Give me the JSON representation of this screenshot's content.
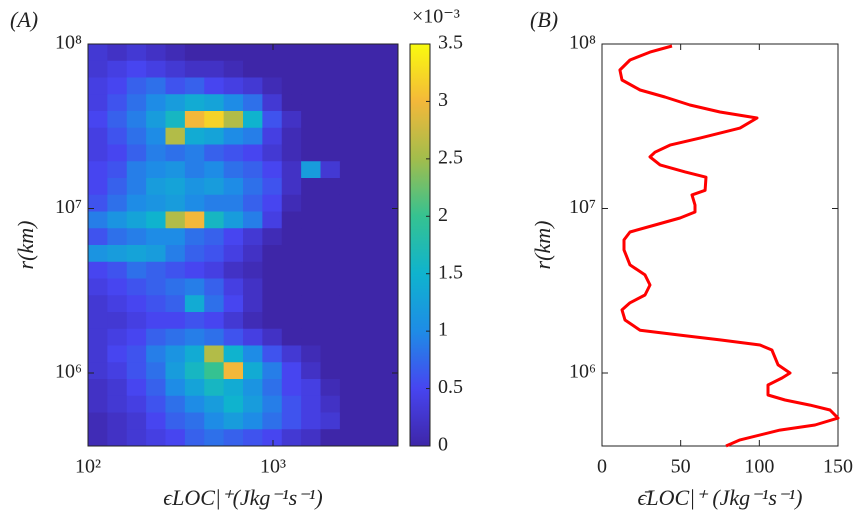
{
  "chart_data": [
    {
      "type": "heatmap",
      "panel_label": "(A)",
      "xlabel": "ϵLOC|⁺(Jkg⁻¹s⁻¹)",
      "ylabel": "r(km)",
      "xscale": "log",
      "yscale": "log",
      "xlim": [
        100,
        4740
      ],
      "ylim": [
        360000,
        100000000
      ],
      "xticks": [
        {
          "value": 100,
          "label": "10²"
        },
        {
          "value": 1000,
          "label": "10³"
        }
      ],
      "yticks": [
        {
          "value": 1000000,
          "label": "10⁶"
        },
        {
          "value": 10000000,
          "label": "10⁷"
        },
        {
          "value": 100000000,
          "label": "10⁸"
        }
      ],
      "clim": [
        0,
        3.5
      ],
      "colorbar_ticks": [
        0,
        0.5,
        1,
        1.5,
        2,
        2.5,
        3,
        3.5
      ],
      "colorbar_label": "×10⁻³",
      "colormap": [
        "#3e26a8",
        "#4745f0",
        "#1e8ce6",
        "#0fb3ce",
        "#35c291",
        "#a2bd4c",
        "#f3b83a",
        "#f9fb0e"
      ],
      "z": [
        [
          0.3,
          0.2,
          0.3,
          0.2,
          0.1,
          0,
          0,
          0,
          0,
          0,
          0,
          0,
          0,
          0,
          0,
          0
        ],
        [
          0.3,
          0.4,
          0.5,
          0.4,
          0.3,
          0.2,
          0.2,
          0.1,
          0,
          0,
          0,
          0,
          0,
          0,
          0,
          0
        ],
        [
          0.4,
          0.5,
          0.7,
          0.8,
          0.6,
          0.7,
          0.5,
          0.4,
          0.3,
          0.1,
          0,
          0,
          0,
          0,
          0,
          0
        ],
        [
          0.4,
          0.6,
          0.8,
          1.0,
          1.2,
          1.4,
          1.3,
          1.0,
          0.8,
          0.3,
          0,
          0,
          0,
          0,
          0,
          0
        ],
        [
          0.5,
          0.7,
          0.9,
          1.2,
          1.6,
          3.0,
          3.2,
          2.6,
          1.5,
          0.6,
          0.2,
          0,
          0,
          0,
          0,
          0
        ],
        [
          0.4,
          0.6,
          0.8,
          1.0,
          2.6,
          1.4,
          1.3,
          1.0,
          0.9,
          0.4,
          0.1,
          0,
          0,
          0,
          0,
          0
        ],
        [
          0.4,
          0.5,
          0.7,
          0.9,
          0.8,
          0.9,
          0.7,
          0.6,
          0.5,
          0.3,
          0.1,
          0,
          0,
          0,
          0,
          0
        ],
        [
          0.5,
          0.6,
          0.9,
          1.0,
          1.1,
          0.9,
          1.0,
          0.8,
          0.7,
          0.5,
          0.2,
          1.2,
          0.3,
          0,
          0,
          0
        ],
        [
          0.5,
          0.7,
          0.9,
          1.2,
          1.3,
          1.1,
          1.2,
          1.0,
          0.8,
          0.6,
          0.2,
          0,
          0,
          0,
          0,
          0
        ],
        [
          0.6,
          0.8,
          1.0,
          1.1,
          1.2,
          1.0,
          0.9,
          0.9,
          0.7,
          0.5,
          0.1,
          0,
          0,
          0,
          0,
          0
        ],
        [
          0.9,
          1.1,
          1.3,
          1.5,
          2.6,
          3.0,
          1.6,
          1.2,
          0.9,
          0.4,
          0,
          0,
          0,
          0,
          0,
          0
        ],
        [
          0.6,
          0.8,
          0.9,
          1.0,
          1.0,
          0.8,
          0.7,
          0.5,
          0.3,
          0.1,
          0,
          0,
          0,
          0,
          0,
          0
        ],
        [
          1.1,
          1.2,
          1.3,
          1.2,
          0.9,
          0.7,
          0.6,
          0.4,
          0.2,
          0,
          0,
          0,
          0,
          0,
          0,
          0
        ],
        [
          0.5,
          0.6,
          0.8,
          0.7,
          0.6,
          0.5,
          0.4,
          0.2,
          0.1,
          0,
          0,
          0,
          0,
          0,
          0,
          0
        ],
        [
          0.4,
          0.5,
          0.6,
          0.7,
          0.8,
          0.9,
          0.7,
          0.4,
          0.2,
          0,
          0,
          0,
          0,
          0,
          0,
          0
        ],
        [
          0.3,
          0.4,
          0.5,
          0.6,
          0.7,
          1.4,
          0.8,
          0.5,
          0.2,
          0,
          0,
          0,
          0,
          0,
          0,
          0
        ],
        [
          0.3,
          0.3,
          0.4,
          0.5,
          0.5,
          0.6,
          0.5,
          0.3,
          0.1,
          0,
          0,
          0,
          0,
          0,
          0,
          0
        ],
        [
          0.3,
          0.4,
          0.5,
          0.7,
          0.8,
          0.9,
          0.8,
          0.6,
          0.4,
          0.2,
          0,
          0,
          0,
          0,
          0,
          0
        ],
        [
          0.3,
          0.5,
          0.6,
          0.9,
          1.1,
          1.4,
          2.6,
          1.5,
          1.0,
          0.6,
          0.3,
          0.1,
          0,
          0,
          0,
          0
        ],
        [
          0.3,
          0.4,
          0.6,
          0.8,
          1.2,
          1.6,
          2.0,
          3.0,
          1.4,
          0.9,
          0.5,
          0.2,
          0,
          0,
          0,
          0
        ],
        [
          0.2,
          0.3,
          0.5,
          0.7,
          1.0,
          1.3,
          1.6,
          1.4,
          1.1,
          0.8,
          0.5,
          0.4,
          0.1,
          0,
          0,
          0
        ],
        [
          0.2,
          0.3,
          0.4,
          0.6,
          0.8,
          1.0,
          1.2,
          1.5,
          1.2,
          0.9,
          0.6,
          0.4,
          0.2,
          0,
          0,
          0
        ],
        [
          0.1,
          0.2,
          0.3,
          0.5,
          0.7,
          0.8,
          1.0,
          1.2,
          1.0,
          0.8,
          0.6,
          0.4,
          0.3,
          0,
          0,
          0
        ],
        [
          0.1,
          0.2,
          0.3,
          0.4,
          0.5,
          0.7,
          0.8,
          0.7,
          0.6,
          0.5,
          0.3,
          0.2,
          0,
          0,
          0,
          0
        ]
      ]
    },
    {
      "type": "line",
      "panel_label": "(B)",
      "xlabel": "ϵ̄LOC|⁺ (Jkg⁻¹s⁻¹)",
      "ylabel": "r(km)",
      "yscale": "log",
      "xlim": [
        0,
        150
      ],
      "xticks": [
        0,
        50,
        100,
        150
      ],
      "ylim": [
        360000,
        100000000
      ],
      "yticks": [
        {
          "value": 1000000,
          "label": "10⁶"
        },
        {
          "value": 10000000,
          "label": "10⁷"
        },
        {
          "value": 100000000,
          "label": "10⁸"
        }
      ],
      "series": [
        {
          "color": "#ff0000",
          "values": [
            44.5,
            30.5,
            17.8,
            11.4,
            12.7,
            24.2,
            40,
            55.9,
            75,
            98.5,
            87.7,
            62.3,
            43.2,
            33.7,
            30.5,
            36.9,
            52.8,
            66.1,
            65.5,
            57.2,
            59.1,
            59.1,
            49.6,
            33.7,
            17.8,
            14,
            14,
            17.8,
            27.3,
            30.5,
            27.3,
            17.8,
            12.7,
            14.6,
            24.2,
            49.6,
            75,
            100.4,
            108,
            111.9,
            119.5,
            114.4,
            105.5,
            105.5,
            116.3,
            132.2,
            144.9,
            150,
            135.4,
            113.1,
            87.7,
            78.8
          ],
          "y": [
            97200000,
            89300000,
            79900000,
            69500000,
            60400000,
            52500000,
            47600000,
            42600000,
            38600000,
            35500000,
            30800000,
            26800000,
            24300000,
            22000000,
            20600000,
            18400000,
            16700000,
            15500000,
            12900000,
            12100000,
            10500000,
            9520000,
            8750000,
            7940000,
            7200000,
            6440000,
            5600000,
            4540000,
            3950000,
            3430000,
            2980000,
            2670000,
            2420000,
            2100000,
            1820000,
            1700000,
            1590000,
            1480000,
            1380000,
            1120000,
            1000000,
            933000,
            845000,
            735000,
            685000,
            638000,
            596000,
            532000,
            483000,
            450000,
            392000,
            360000
          ]
        }
      ]
    }
  ]
}
